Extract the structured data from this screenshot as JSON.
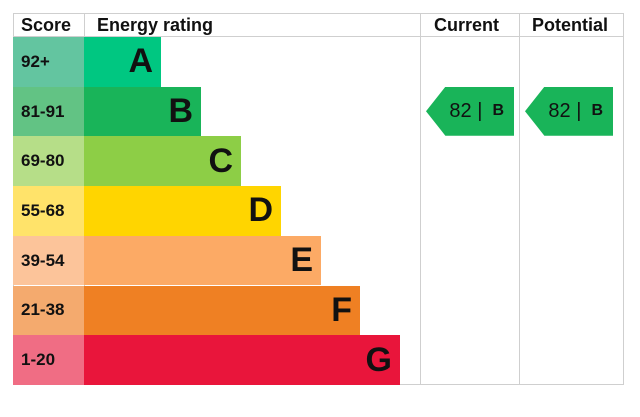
{
  "chart_data": {
    "type": "bar",
    "headers": {
      "score": "Score",
      "rating": "Energy rating",
      "current": "Current",
      "potential": "Potential"
    },
    "bands": [
      {
        "score": "92+",
        "letter": "A",
        "color": "#00c781",
        "score_color": "#63c5a0"
      },
      {
        "score": "81-91",
        "letter": "B",
        "color": "#19b459",
        "score_color": "#62c384"
      },
      {
        "score": "69-80",
        "letter": "C",
        "color": "#8dce46",
        "score_color": "#b6de88"
      },
      {
        "score": "55-68",
        "letter": "D",
        "color": "#ffd500",
        "score_color": "#ffe36a"
      },
      {
        "score": "39-54",
        "letter": "E",
        "color": "#fcaa65",
        "score_color": "#fcc49a"
      },
      {
        "score": "21-38",
        "letter": "F",
        "color": "#ef8023",
        "score_color": "#f4aa6e"
      },
      {
        "score": "1-20",
        "letter": "G",
        "color": "#e9153b",
        "score_color": "#f06d84"
      }
    ],
    "current": {
      "value": "82",
      "letter": "B",
      "separator": "|",
      "color": "#19b459"
    },
    "potential": {
      "value": "82",
      "letter": "B",
      "separator": "|",
      "color": "#19b459"
    }
  }
}
